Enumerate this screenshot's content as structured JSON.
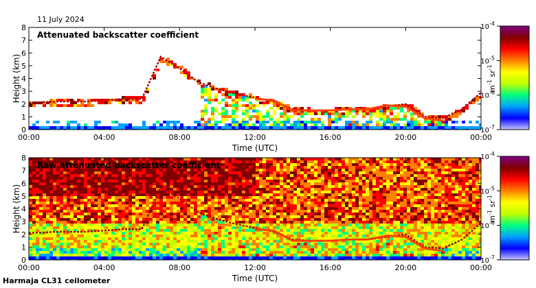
{
  "date_label": "11 July 2024",
  "footer_label": "Harmaja CL31 ceilometer",
  "colors": {
    "scale": [
      "#c8c8ff",
      "#0000ff",
      "#00a0ff",
      "#00ff80",
      "#c0ff00",
      "#ffff00",
      "#ff8000",
      "#ff0000",
      "#800000",
      "#800080"
    ],
    "background_raw": "#22c4ff",
    "layer": "#a00000"
  },
  "chart_data": [
    {
      "type": "heatmap",
      "title": "Attenuated backscatter coefficient",
      "xlabel": "Time (UTC)",
      "ylabel": "Height (km)",
      "x_ticks": [
        "00:00",
        "04:00",
        "08:00",
        "12:00",
        "16:00",
        "20:00",
        "00:00"
      ],
      "y_ticks": [
        "0",
        "1",
        "2",
        "3",
        "4",
        "5",
        "6",
        "7",
        "8"
      ],
      "ylim": [
        0,
        8
      ],
      "xlim_hours": [
        0,
        24
      ],
      "colorbar": {
        "label": "m-1 sr-1",
        "label_parts": [
          "m",
          "-1",
          " sr",
          "-1"
        ],
        "ticks": [
          {
            "base": "10",
            "exp": "-4",
            "value": -4
          },
          {
            "base": "10",
            "exp": "-5",
            "value": -5
          },
          {
            "base": "10",
            "exp": "-6",
            "value": -6
          },
          {
            "base": "10",
            "exp": "-7",
            "value": -7
          }
        ],
        "range_log10": [
          -7,
          -4
        ]
      },
      "features": {
        "boundary_layer_top_km": [
          [
            0,
            2.1
          ],
          [
            1.5,
            2.2
          ],
          [
            3,
            2.2
          ],
          [
            4,
            2.3
          ],
          [
            5,
            2.4
          ],
          [
            6,
            2.4
          ],
          [
            7,
            5.7
          ],
          [
            8,
            4.8
          ],
          [
            9,
            3.7
          ],
          [
            10,
            3.2
          ],
          [
            11,
            2.8
          ],
          [
            12,
            2.5
          ],
          [
            13,
            2.2
          ],
          [
            14,
            1.6
          ],
          [
            15,
            1.5
          ],
          [
            16,
            1.5
          ],
          [
            17,
            1.6
          ],
          [
            18,
            1.6
          ],
          [
            19,
            1.8
          ],
          [
            20,
            2.0
          ],
          [
            21,
            1.0
          ],
          [
            22,
            0.9
          ],
          [
            23,
            1.6
          ],
          [
            24,
            2.9
          ]
        ],
        "cloud_base_km": [
          [
            12,
            2.4
          ],
          [
            13,
            2.3
          ],
          [
            14,
            1.5
          ],
          [
            15,
            1.5
          ],
          [
            16,
            1.5
          ],
          [
            17,
            1.6
          ],
          [
            18,
            1.6
          ],
          [
            19,
            1.9
          ],
          [
            20,
            1.8
          ],
          [
            21,
            0.9
          ],
          [
            22,
            0.7
          ]
        ]
      }
    },
    {
      "type": "heatmap",
      "title": "Raw attenuated backscatter coefficient",
      "xlabel": "Time (UTC)",
      "ylabel": "Height (km)",
      "x_ticks": [
        "00:00",
        "04:00",
        "08:00",
        "12:00",
        "16:00",
        "20:00",
        "00:00"
      ],
      "y_ticks": [
        "0",
        "1",
        "2",
        "3",
        "4",
        "5",
        "6",
        "7",
        "8"
      ],
      "ylim": [
        0,
        8
      ],
      "xlim_hours": [
        0,
        24
      ],
      "colorbar": {
        "label": "m-1 sr-1",
        "label_parts": [
          "m",
          "-1",
          " sr",
          "-1"
        ],
        "ticks": [
          {
            "base": "10",
            "exp": "-4",
            "value": -4
          },
          {
            "base": "10",
            "exp": "-5",
            "value": -5
          },
          {
            "base": "10",
            "exp": "-6",
            "value": -6
          },
          {
            "base": "10",
            "exp": "-7",
            "value": -7
          }
        ],
        "range_log10": [
          -7,
          -4
        ]
      }
    }
  ]
}
